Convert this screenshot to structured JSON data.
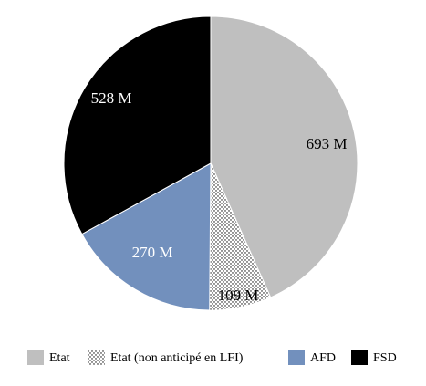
{
  "chart_data": {
    "type": "pie",
    "title": "",
    "unit": "M",
    "slices": [
      {
        "name": "Etat",
        "value": 693,
        "label": "693 M",
        "color": "#bfbfbf",
        "pattern": "solid"
      },
      {
        "name": "Etat (non anticipé en LFI)",
        "value": 109,
        "label": "109 M",
        "color": "#ffffff",
        "pattern": "dotted"
      },
      {
        "name": "AFD",
        "value": 270,
        "label": "270 M",
        "color": "#7290bd",
        "pattern": "solid"
      },
      {
        "name": "FSD",
        "value": 528,
        "label": "528 M",
        "color": "#000000",
        "pattern": "solid"
      }
    ],
    "start_angle": "12 o'clock",
    "direction": "clockwise",
    "legend": {
      "position": "bottom",
      "entries": [
        "Etat",
        "Etat (non anticipé en LFI)",
        "AFD",
        "FSD"
      ]
    }
  }
}
